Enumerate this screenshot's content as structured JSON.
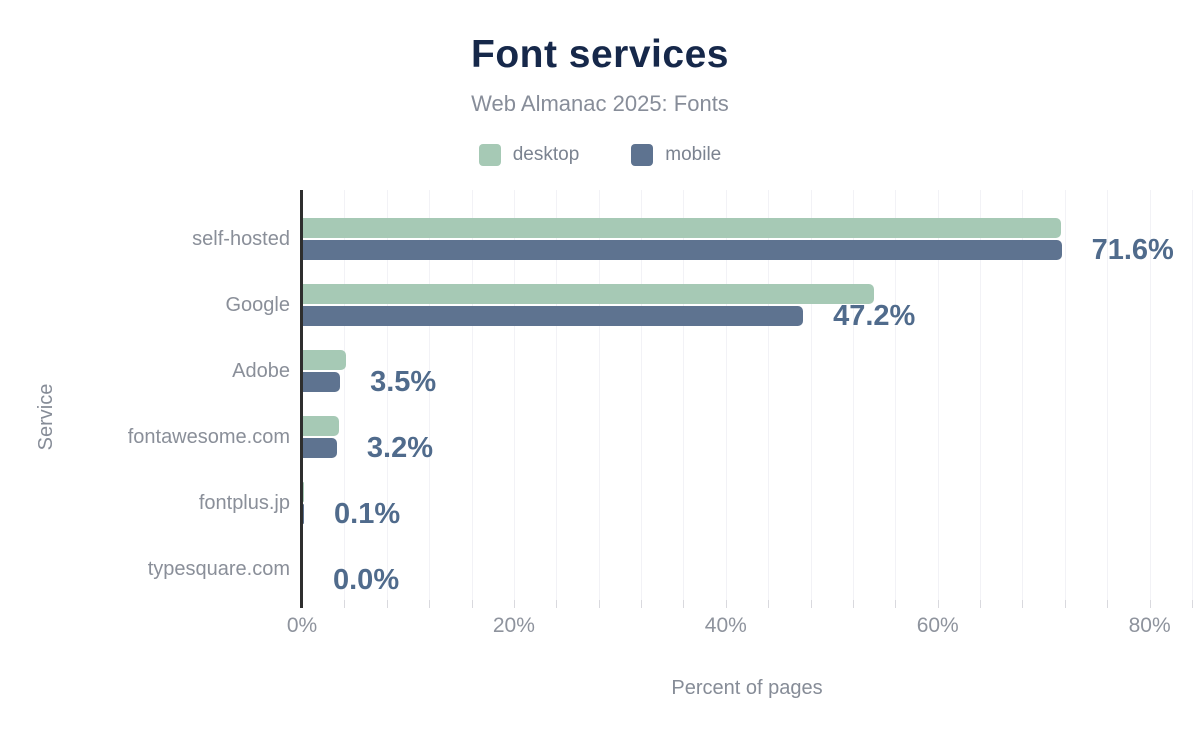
{
  "chart_data": {
    "type": "bar",
    "orientation": "horizontal",
    "title": "Font services",
    "subtitle": "Web Almanac 2025: Fonts",
    "xlabel": "Percent of pages",
    "ylabel": "Service",
    "categories": [
      "self-hosted",
      "Google",
      "Adobe",
      "fontawesome.com",
      "fontplus.jp",
      "typesquare.com"
    ],
    "series": [
      {
        "name": "desktop",
        "color": "#a6c9b5",
        "values": [
          71.5,
          53.9,
          4.1,
          3.4,
          0.1,
          0.0
        ]
      },
      {
        "name": "mobile",
        "color": "#5e7390",
        "values": [
          71.6,
          47.2,
          3.5,
          3.2,
          0.1,
          0.0
        ]
      }
    ],
    "value_labels": [
      "71.6%",
      "47.2%",
      "3.5%",
      "3.2%",
      "0.1%",
      "0.0%"
    ],
    "value_label_series": "mobile",
    "x_ticks": [
      {
        "value": 0,
        "label": "0%"
      },
      {
        "value": 20,
        "label": "20%"
      },
      {
        "value": 40,
        "label": "40%"
      },
      {
        "value": 60,
        "label": "60%"
      },
      {
        "value": 80,
        "label": "80%"
      }
    ],
    "xlim": [
      0,
      84
    ],
    "minor_grid_step": 4,
    "grid": true,
    "legend_position": "top"
  },
  "colors": {
    "background": "#ffffff",
    "title": "#16284a",
    "subtitle": "#878d99",
    "category_label": "#8a8f99",
    "value_label": "#506b8c",
    "gridline": "#f2f2f6",
    "axis_line": "#2e2e2e",
    "tick": "#d9d9de"
  }
}
